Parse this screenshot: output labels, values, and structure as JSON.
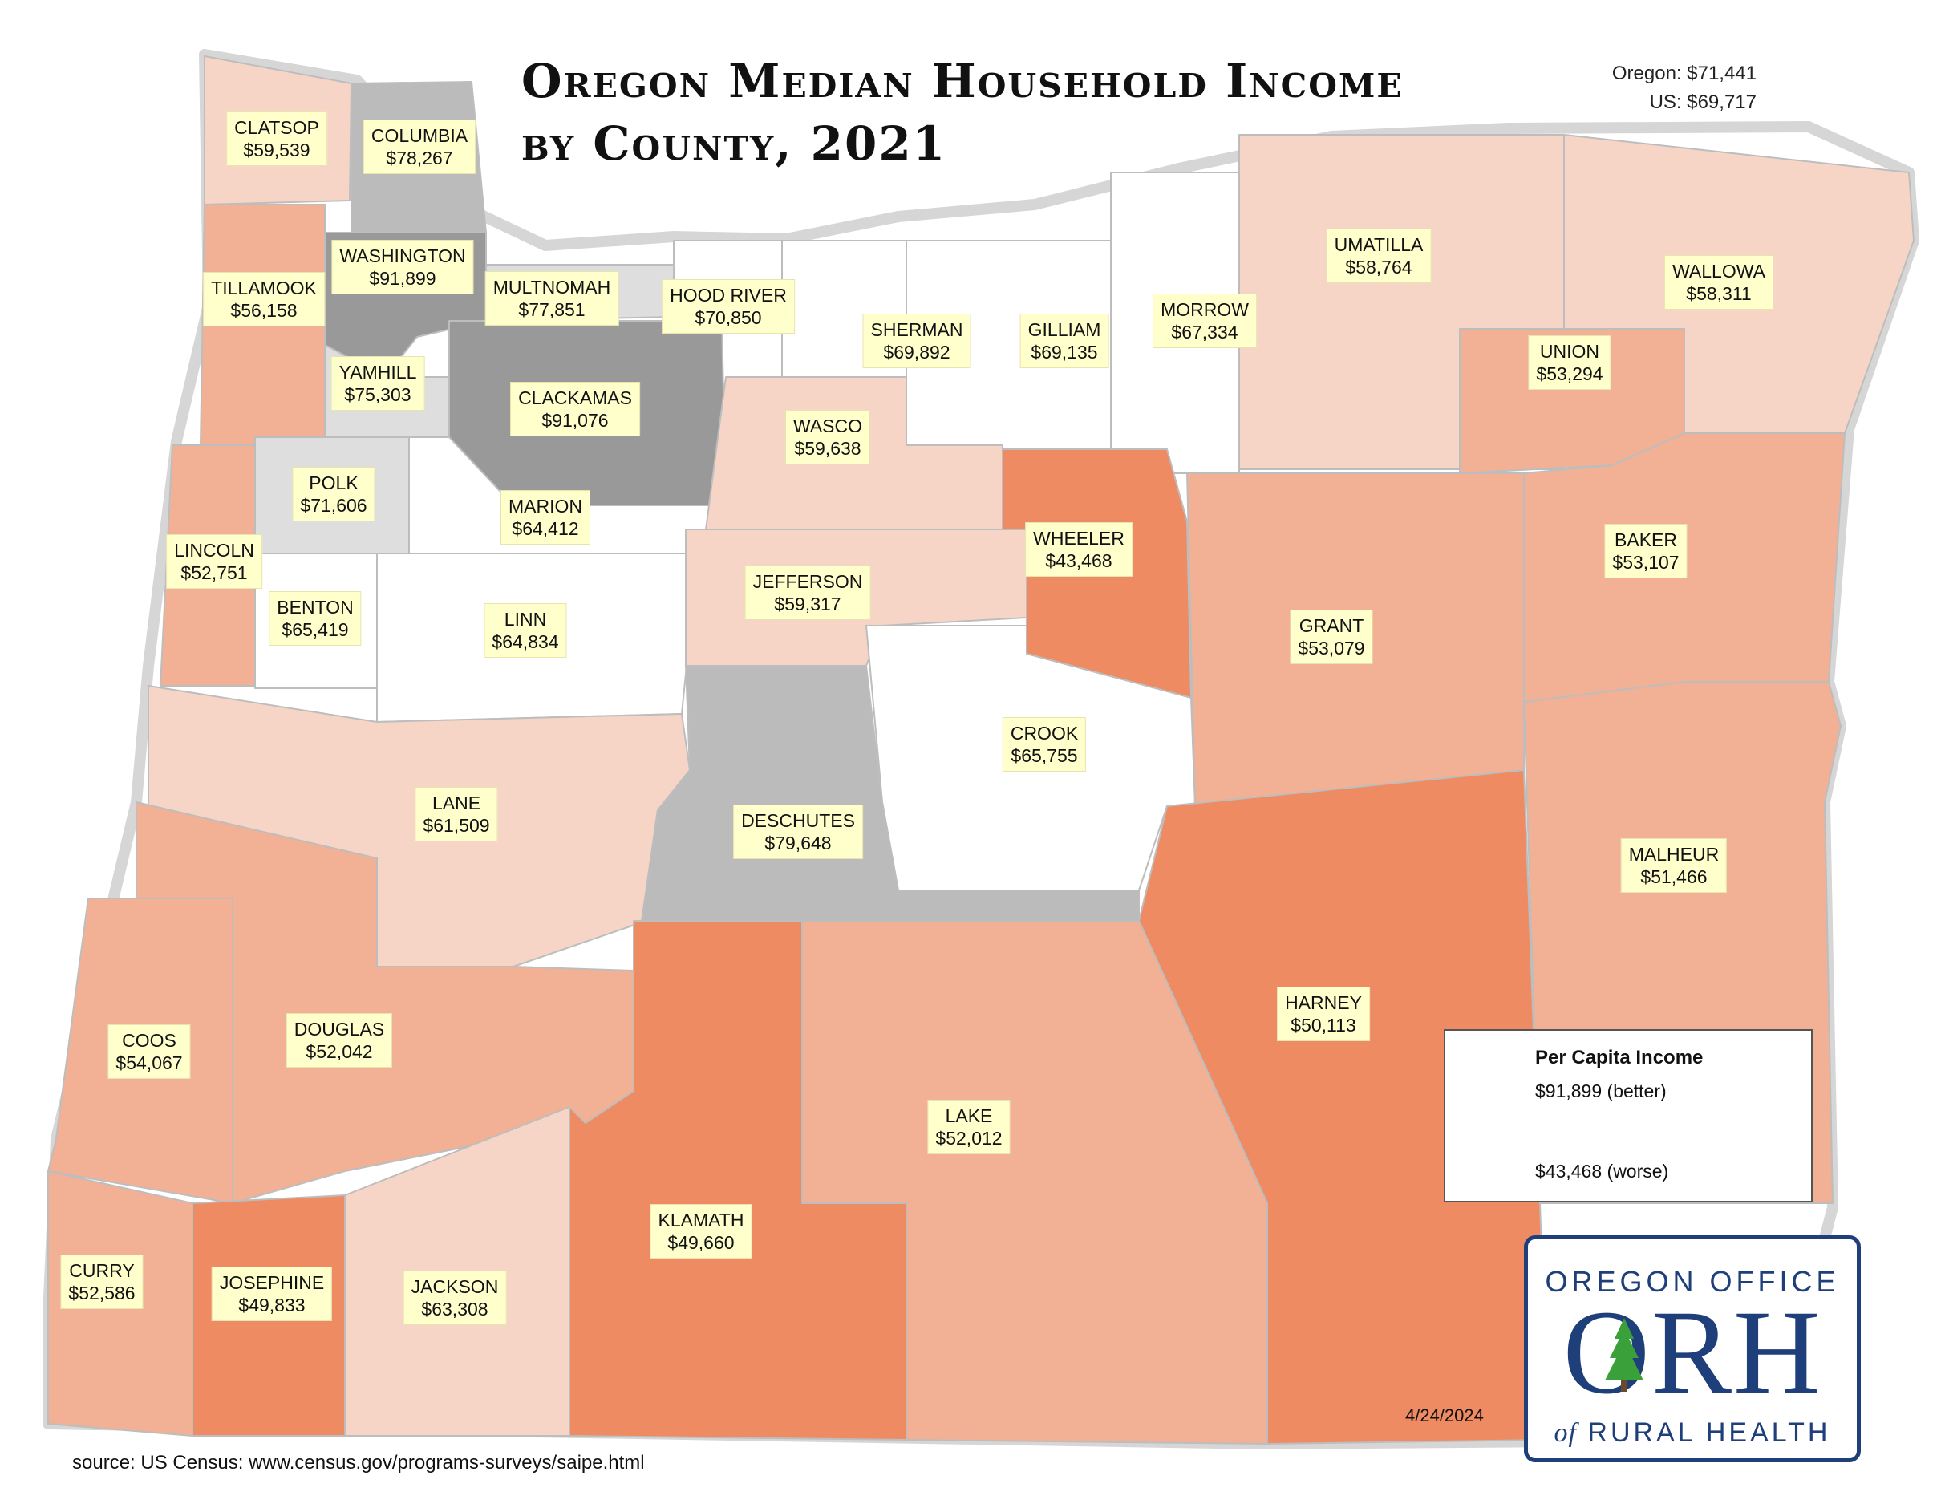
{
  "title_line1": "Oregon Median Household Income",
  "title_line2": "by County, 2021",
  "state_stat": "Oregon: $71,441",
  "us_stat": "US: $69,717",
  "colors": {
    "highest": "#999999",
    "high": "#bbbbbb",
    "above": "#dedede",
    "mid": "#ffffff",
    "below": "#f7d5c6",
    "low": "#f2b195",
    "lowest": "#ef8b63",
    "border": "#bdbdbd",
    "label_bg": "#ffffcc",
    "logo_blue": "#1f3f7a",
    "logo_green": "#3aa13a"
  },
  "counties": [
    {
      "name": "CLATSOP",
      "value": "$59,539",
      "income": 59539
    },
    {
      "name": "COLUMBIA",
      "value": "$78,267",
      "income": 78267
    },
    {
      "name": "WASHINGTON",
      "value": "$91,899",
      "income": 91899
    },
    {
      "name": "TILLAMOOK",
      "value": "$56,158",
      "income": 56158
    },
    {
      "name": "MULTNOMAH",
      "value": "$77,851",
      "income": 77851
    },
    {
      "name": "HOOD RIVER",
      "value": "$70,850",
      "income": 70850
    },
    {
      "name": "SHERMAN",
      "value": "$69,892",
      "income": 69892
    },
    {
      "name": "GILLIAM",
      "value": "$69,135",
      "income": 69135
    },
    {
      "name": "MORROW",
      "value": "$67,334",
      "income": 67334
    },
    {
      "name": "UMATILLA",
      "value": "$58,764",
      "income": 58764
    },
    {
      "name": "WALLOWA",
      "value": "$58,311",
      "income": 58311
    },
    {
      "name": "UNION",
      "value": "$53,294",
      "income": 53294
    },
    {
      "name": "YAMHILL",
      "value": "$75,303",
      "income": 75303
    },
    {
      "name": "CLACKAMAS",
      "value": "$91,076",
      "income": 91076
    },
    {
      "name": "WASCO",
      "value": "$59,638",
      "income": 59638
    },
    {
      "name": "POLK",
      "value": "$71,606",
      "income": 71606
    },
    {
      "name": "MARION",
      "value": "$64,412",
      "income": 64412
    },
    {
      "name": "LINCOLN",
      "value": "$52,751",
      "income": 52751
    },
    {
      "name": "WHEELER",
      "value": "$43,468",
      "income": 43468
    },
    {
      "name": "BAKER",
      "value": "$53,107",
      "income": 53107
    },
    {
      "name": "JEFFERSON",
      "value": "$59,317",
      "income": 59317
    },
    {
      "name": "BENTON",
      "value": "$65,419",
      "income": 65419
    },
    {
      "name": "LINN",
      "value": "$64,834",
      "income": 64834
    },
    {
      "name": "GRANT",
      "value": "$53,079",
      "income": 53079
    },
    {
      "name": "CROOK",
      "value": "$65,755",
      "income": 65755
    },
    {
      "name": "LANE",
      "value": "$61,509",
      "income": 61509
    },
    {
      "name": "DESCHUTES",
      "value": "$79,648",
      "income": 79648
    },
    {
      "name": "MALHEUR",
      "value": "$51,466",
      "income": 51466
    },
    {
      "name": "HARNEY",
      "value": "$50,113",
      "income": 50113
    },
    {
      "name": "COOS",
      "value": "$54,067",
      "income": 54067
    },
    {
      "name": "DOUGLAS",
      "value": "$52,042",
      "income": 52042
    },
    {
      "name": "LAKE",
      "value": "$52,012",
      "income": 52012
    },
    {
      "name": "KLAMATH",
      "value": "$49,660",
      "income": 49660
    },
    {
      "name": "CURRY",
      "value": "$52,586",
      "income": 52586
    },
    {
      "name": "JOSEPHINE",
      "value": "$49,833",
      "income": 49833
    },
    {
      "name": "JACKSON",
      "value": "$63,308",
      "income": 63308
    }
  ],
  "legend": {
    "title": "Per Capita Income",
    "high_label": "$91,899 (better)",
    "low_label": "$43,468 (worse)"
  },
  "source": "source: US Census: www.census.gov/programs-surveys/saipe.html",
  "date": "4/24/2024",
  "logo": {
    "top": "OREGON OFFICE",
    "mark": "ORH",
    "bottom_italic": "of",
    "bottom": "RURAL HEALTH"
  }
}
